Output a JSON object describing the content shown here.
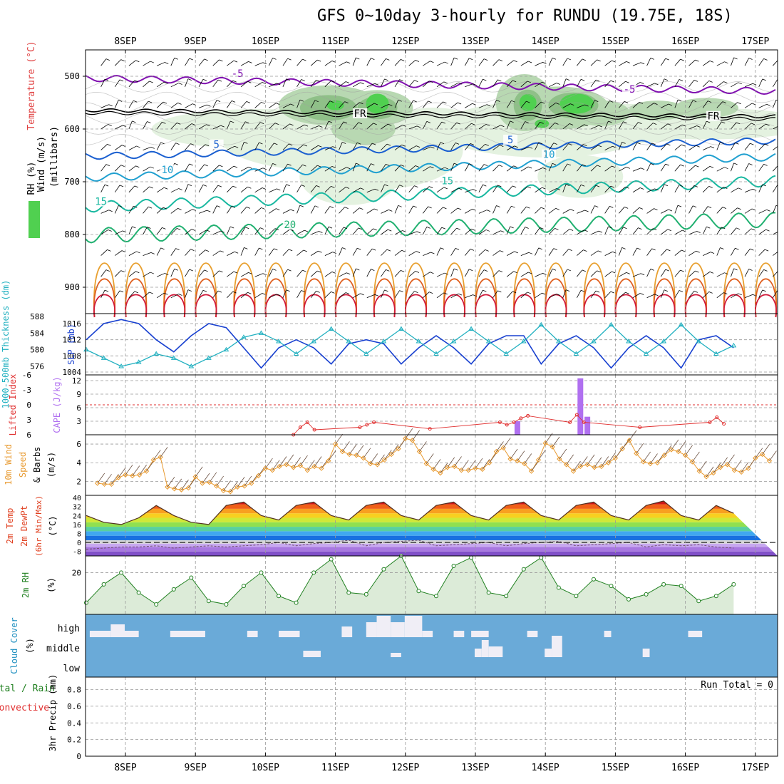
{
  "title": "GFS 0~10day 3-hourly for RUNDU (19.75E, 18S)",
  "date_labels": [
    "8SEP",
    "9SEP",
    "10SEP",
    "11SEP",
    "12SEP",
    "13SEP",
    "14SEP",
    "15SEP",
    "16SEP",
    "17SEP"
  ],
  "colors": {
    "temp_line": "#e04020",
    "slp_line": "#1840d0",
    "thick_line": "#20b0c0",
    "cape_bar": "#b070f0",
    "li_line": "#e03030",
    "wind_line": "#e89a30",
    "rh_line": "#208020",
    "rh_fill": "#dcebd8",
    "cloud_bg": "#6aaad8",
    "cloud_block": "#f0eef6",
    "purple_contour": "#8010b0"
  },
  "chart_data": [
    {
      "id": "upper_air",
      "type": "heatmap",
      "ylabel_parts": [
        "Wind (m/s)",
        "Temperature (°C)",
        "RH (%)",
        "(millibars)"
      ],
      "yticks": [
        500,
        600,
        700,
        800,
        900
      ],
      "ylim": [
        1000,
        450
      ],
      "contour_labels": [
        {
          "text": "-5",
          "x": 1.6,
          "p": 497
        },
        {
          "text": "-5",
          "x": 7.2,
          "p": 527
        },
        {
          "text": "FR",
          "x": 3.35,
          "p": 573
        },
        {
          "text": "FR",
          "x": 8.4,
          "p": 578
        },
        {
          "text": "5",
          "x": 1.3,
          "p": 632
        },
        {
          "text": "5",
          "x": 5.5,
          "p": 623
        },
        {
          "text": "10",
          "x": 0.6,
          "p": 680
        },
        {
          "text": "10",
          "x": 6.05,
          "p": 651
        },
        {
          "text": "15",
          "x": -0.35,
          "p": 740
        },
        {
          "text": "15",
          "x": 4.6,
          "p": 701
        },
        {
          "text": "20",
          "x": 2.35,
          "p": 784
        }
      ]
    },
    {
      "id": "slp_thickness",
      "type": "line",
      "left_label": "1000-500mb Thickness (dm)",
      "right_label": "SLP (mb)",
      "left_ticks": [
        576,
        580,
        584,
        588
      ],
      "right_ticks": [
        1004,
        1008,
        1012,
        1016
      ],
      "x": [
        0,
        0.25,
        0.5,
        0.75,
        1,
        1.25,
        1.5,
        1.75,
        2,
        2.25,
        2.5,
        2.75,
        3,
        3.25,
        3.5,
        3.75,
        4,
        4.25,
        4.5,
        4.75,
        5,
        5.25,
        5.5,
        5.75,
        6,
        6.25,
        6.5,
        6.75,
        7,
        7.25,
        7.5,
        7.75,
        8,
        8.25,
        8.5,
        8.75,
        9,
        9.25
      ],
      "series": [
        {
          "name": "SLP",
          "values": [
            1012,
            1016,
            1017,
            1016,
            1012,
            1009,
            1013,
            1016,
            1015,
            1010,
            1005,
            1010,
            1012,
            1010,
            1006,
            1011,
            1012,
            1011,
            1006,
            1010,
            1013,
            1010,
            1006,
            1011,
            1013,
            1013,
            1006,
            1011,
            1013,
            1010,
            1005,
            1010,
            1013,
            1010,
            1005,
            1012,
            1013,
            1010
          ]
        },
        {
          "name": "Thickness",
          "values": [
            580,
            578,
            576,
            577,
            579,
            578,
            576,
            578,
            580,
            583,
            584,
            582,
            579,
            582,
            585,
            582,
            579,
            582,
            585,
            582,
            579,
            582,
            585,
            582,
            579,
            582,
            586,
            582,
            579,
            582,
            586,
            582,
            579,
            582,
            586,
            582,
            579,
            581
          ]
        }
      ]
    },
    {
      "id": "li_cape",
      "type": "bar",
      "left_label": "Lifted Index",
      "right_label": "CAPE (J/kg)",
      "left_ticks": [
        "6",
        "3",
        "0",
        "-3",
        "-6"
      ],
      "right_ticks": [
        3,
        6,
        9,
        12
      ],
      "cape_bars": [
        {
          "x": 5.6,
          "value": 3
        },
        {
          "x": 6.5,
          "value": 12.5
        },
        {
          "x": 6.6,
          "value": 4
        }
      ],
      "li_points": [
        {
          "x": 2.4,
          "value": 6
        },
        {
          "x": 2.5,
          "value": 4.5
        },
        {
          "x": 2.6,
          "value": 3.5
        },
        {
          "x": 2.7,
          "value": 5
        },
        {
          "x": 3.35,
          "value": 4.5
        },
        {
          "x": 3.45,
          "value": 4
        },
        {
          "x": 3.55,
          "value": 3.5
        },
        {
          "x": 4.35,
          "value": 4.8
        },
        {
          "x": 5.35,
          "value": 3.5
        },
        {
          "x": 5.45,
          "value": 4
        },
        {
          "x": 5.55,
          "value": 3.5
        },
        {
          "x": 5.65,
          "value": 2.7
        },
        {
          "x": 5.75,
          "value": 2.2
        },
        {
          "x": 6.35,
          "value": 3.5
        },
        {
          "x": 6.45,
          "value": 2
        },
        {
          "x": 6.55,
          "value": 3.5
        },
        {
          "x": 7.35,
          "value": 4.5
        },
        {
          "x": 8.35,
          "value": 3.5
        },
        {
          "x": 8.45,
          "value": 2.5
        },
        {
          "x": 8.55,
          "value": 3.8
        }
      ]
    },
    {
      "id": "wind10m",
      "type": "line",
      "ylabel_parts": [
        "10m Wind",
        "Speed",
        "& Barbs",
        "(m/s)"
      ],
      "yticks": [
        2,
        4,
        6
      ],
      "ylim": [
        0.5,
        7
      ],
      "x": [
        -0.4,
        -0.3,
        -0.2,
        -0.1,
        0,
        0.1,
        0.2,
        0.3,
        0.4,
        0.5,
        0.6,
        0.7,
        0.8,
        0.9,
        1,
        1.1,
        1.2,
        1.3,
        1.4,
        1.5,
        1.6,
        1.7,
        1.8,
        1.9,
        2,
        2.1,
        2.2,
        2.3,
        2.4,
        2.5,
        2.6,
        2.7,
        2.8,
        2.9,
        3,
        3.1,
        3.2,
        3.3,
        3.4,
        3.5,
        3.6,
        3.7,
        3.8,
        3.9,
        4,
        4.1,
        4.2,
        4.3,
        4.4,
        4.5,
        4.6,
        4.7,
        4.8,
        4.9,
        5,
        5.1,
        5.2,
        5.3,
        5.4,
        5.5,
        5.6,
        5.7,
        5.8,
        5.9,
        6,
        6.1,
        6.2,
        6.3,
        6.4,
        6.5,
        6.6,
        6.7,
        6.8,
        6.9,
        7,
        7.1,
        7.2,
        7.3,
        7.4,
        7.5,
        7.6,
        7.7,
        7.8,
        7.9,
        8,
        8.1,
        8.2,
        8.3,
        8.4,
        8.5,
        8.6,
        8.7,
        8.8,
        8.9,
        9,
        9.1,
        9.2
      ],
      "values": [
        1.8,
        1.7,
        1.7,
        2.4,
        2.7,
        2.6,
        2.7,
        3.1,
        4.3,
        4.6,
        1.4,
        1.2,
        1.1,
        1.3,
        2.5,
        1.8,
        1.9,
        1.5,
        1.0,
        0.9,
        1.4,
        1.5,
        1.8,
        2.6,
        3.4,
        3.2,
        3.6,
        3.8,
        3.5,
        3.7,
        3.2,
        3.6,
        3.4,
        4.2,
        6.0,
        5.2,
        4.9,
        4.8,
        4.5,
        3.9,
        3.8,
        4.3,
        4.9,
        5.5,
        6.6,
        6.4,
        5.2,
        3.9,
        3.3,
        2.9,
        3.5,
        3.6,
        3.2,
        3.2,
        3.4,
        3.3,
        4.0,
        5.2,
        5.6,
        4.4,
        4.2,
        3.9,
        3.1,
        4.3,
        6.1,
        5.7,
        4.4,
        3.8,
        3.1,
        3.6,
        3.8,
        3.5,
        3.6,
        4.0,
        4.5,
        5.5,
        6.4,
        5.0,
        4.1,
        3.9,
        4.0,
        4.8,
        5.4,
        5.2,
        4.8,
        4.1,
        3.1,
        2.5,
        2.9,
        3.5,
        3.8,
        3.2,
        3.0,
        3.4,
        4.5,
        4.9,
        4.2
      ]
    },
    {
      "id": "temp2m",
      "type": "area",
      "ylabel_parts": [
        "2m Temp",
        "2m DewPt",
        "(6hr Min/Max)",
        "(°C)"
      ],
      "yticks": [
        -8,
        0,
        8,
        16,
        24,
        32,
        40
      ],
      "ylim": [
        -12,
        42
      ],
      "band_colors": [
        "#8050c8",
        "#a878e0",
        "#c8a8f0",
        "#d8d8d8",
        "#1870e0",
        "#40a8f0",
        "#58d0a0",
        "#90e050",
        "#d0e838",
        "#f8d020",
        "#f8a020",
        "#f06018",
        "#d01818",
        "#900808"
      ],
      "x": [
        0,
        0.25,
        0.5,
        0.75,
        1,
        1.25,
        1.5,
        1.75,
        2,
        2.25,
        2.5,
        2.75,
        3,
        3.25,
        3.5,
        3.75,
        4,
        4.25,
        4.5,
        4.75,
        5,
        5.25,
        5.5,
        5.75,
        6,
        6.25,
        6.5,
        6.75,
        7,
        7.25,
        7.5,
        7.75,
        8,
        8.25,
        8.5,
        8.75,
        9,
        9.25
      ],
      "series": [
        {
          "name": "Temp",
          "values": [
            24,
            18,
            16,
            22,
            33,
            24,
            18,
            16,
            33,
            36,
            24,
            20,
            33,
            36,
            24,
            20,
            33,
            36,
            24,
            20,
            33,
            36,
            24,
            20,
            33,
            36,
            24,
            20,
            33,
            36,
            24,
            20,
            33,
            37,
            24,
            20,
            33,
            26
          ]
        },
        {
          "name": "DewPt",
          "values": [
            -6,
            -5,
            -4,
            -4,
            -3,
            -5,
            -4,
            -3,
            -4,
            -3,
            -2,
            0,
            -3,
            -1,
            0,
            2,
            -3,
            0,
            1,
            2,
            -3,
            -2,
            -1,
            0,
            -3,
            -1,
            0,
            1,
            -3,
            -2,
            -1,
            0,
            -4,
            -2,
            -3,
            -2,
            -4,
            -5
          ]
        }
      ]
    },
    {
      "id": "rh2m",
      "type": "area",
      "ylabel_parts": [
        "2m RH",
        "(%)"
      ],
      "yticks": [
        20
      ],
      "ylim": [
        -5,
        30
      ],
      "x": [
        0,
        0.25,
        0.5,
        0.75,
        1,
        1.25,
        1.5,
        1.75,
        2,
        2.25,
        2.5,
        2.75,
        3,
        3.25,
        3.5,
        3.75,
        4,
        4.25,
        4.5,
        4.75,
        5,
        5.25,
        5.5,
        5.75,
        6,
        6.25,
        6.5,
        6.75,
        7,
        7.25,
        7.5,
        7.75,
        8,
        8.25,
        8.5,
        8.75,
        9,
        9.25
      ],
      "values": [
        2,
        13,
        20,
        8,
        1,
        10,
        17,
        3,
        1,
        12,
        20,
        6,
        2,
        20,
        28,
        8,
        7,
        22,
        30,
        9,
        6,
        24,
        29,
        8,
        6,
        22,
        29,
        11,
        6,
        16,
        12,
        4,
        7,
        13,
        12,
        3,
        6,
        13
      ]
    },
    {
      "id": "cloud",
      "type": "heatmap",
      "ylabel_parts": [
        "Cloud Cover",
        "(%)"
      ],
      "ytick_labels": [
        "high",
        "middle",
        "low"
      ],
      "blocks": [
        {
          "layer": "high",
          "x0": 0.05,
          "x1": 0.35,
          "level": 0.3
        },
        {
          "layer": "high",
          "x0": 0.35,
          "x1": 0.55,
          "level": 0.6
        },
        {
          "layer": "high",
          "x0": 0.55,
          "x1": 0.75,
          "level": 0.3
        },
        {
          "layer": "high",
          "x0": 1.2,
          "x1": 1.7,
          "level": 0.3
        },
        {
          "layer": "high",
          "x0": 2.3,
          "x1": 2.45,
          "level": 0.3
        },
        {
          "layer": "high",
          "x0": 2.75,
          "x1": 3.05,
          "level": 0.3
        },
        {
          "layer": "high",
          "x0": 3.65,
          "x1": 3.8,
          "level": 0.5
        },
        {
          "layer": "high",
          "x0": 4.0,
          "x1": 4.15,
          "level": 0.7
        },
        {
          "layer": "high",
          "x0": 4.15,
          "x1": 4.35,
          "level": 1.0
        },
        {
          "layer": "high",
          "x0": 4.35,
          "x1": 4.55,
          "level": 0.7
        },
        {
          "layer": "high",
          "x0": 4.55,
          "x1": 4.8,
          "level": 1.0
        },
        {
          "layer": "high",
          "x0": 4.8,
          "x1": 4.95,
          "level": 0.3
        },
        {
          "layer": "high",
          "x0": 5.25,
          "x1": 5.4,
          "level": 0.3
        },
        {
          "layer": "high",
          "x0": 5.5,
          "x1": 5.75,
          "level": 0.3
        },
        {
          "layer": "high",
          "x0": 6.3,
          "x1": 6.45,
          "level": 0.3
        },
        {
          "layer": "high",
          "x0": 7.4,
          "x1": 7.5,
          "level": 0.3
        },
        {
          "layer": "high",
          "x0": 8.6,
          "x1": 8.8,
          "level": 0.3
        },
        {
          "layer": "middle",
          "x0": 3.1,
          "x1": 3.35,
          "level": 0.3
        },
        {
          "layer": "middle",
          "x0": 4.35,
          "x1": 4.5,
          "level": 0.2
        },
        {
          "layer": "middle",
          "x0": 5.55,
          "x1": 5.65,
          "level": 0.4
        },
        {
          "layer": "middle",
          "x0": 5.65,
          "x1": 5.75,
          "level": 0.8
        },
        {
          "layer": "middle",
          "x0": 5.75,
          "x1": 5.95,
          "level": 0.5
        },
        {
          "layer": "middle",
          "x0": 6.55,
          "x1": 6.65,
          "level": 0.4
        },
        {
          "layer": "middle",
          "x0": 6.65,
          "x1": 6.8,
          "level": 1.0
        },
        {
          "layer": "middle",
          "x0": 7.95,
          "x1": 8.05,
          "level": 0.4
        }
      ]
    },
    {
      "id": "precip",
      "type": "bar",
      "ylabel_parts": [
        "Total / Rain",
        "Convective",
        "3hr Precip (mm)"
      ],
      "yticks": [
        0,
        0.2,
        0.4,
        0.6,
        0.8
      ],
      "ylim": [
        0,
        0.95
      ],
      "annotation": "Run Total = 0",
      "values": []
    }
  ]
}
